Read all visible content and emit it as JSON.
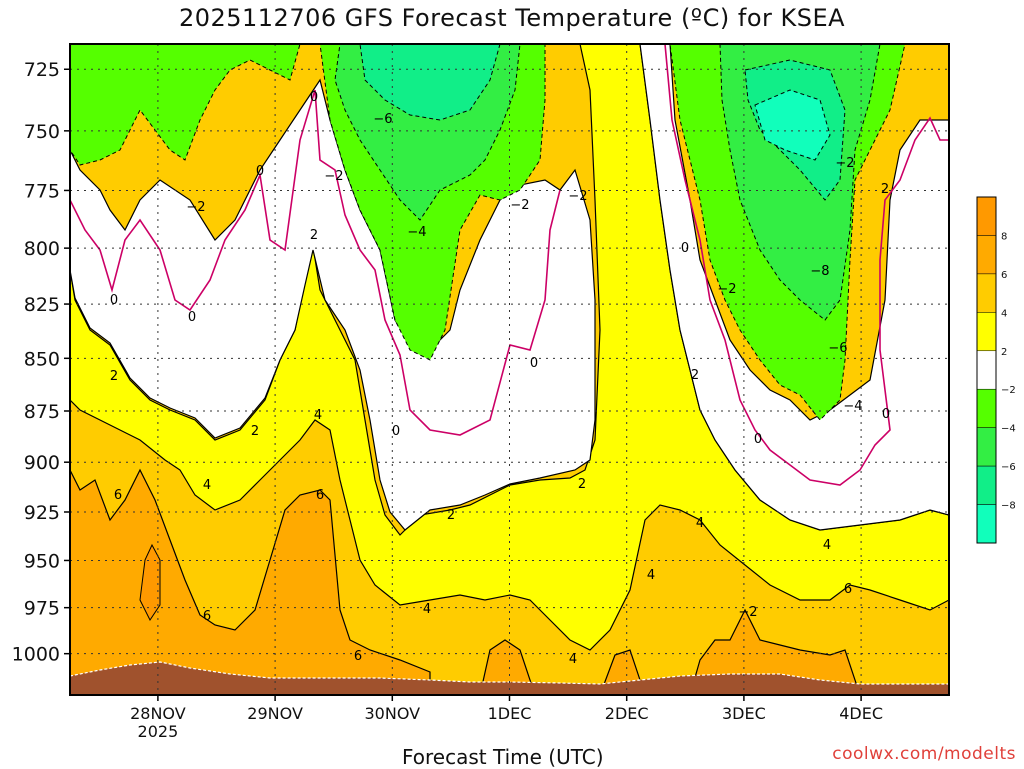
{
  "title": "2025112706 GFS Forecast Temperature (ºC) for KSEA",
  "credit": "coolwx.com/modelts",
  "chart_data": {
    "type": "heatmap",
    "title": "2025112706 GFS Forecast Temperature (ºC) for KSEA",
    "xlabel": "Forecast Time (UTC)",
    "ylabel": "",
    "x_ticks": [
      "28NOV\n2025",
      "29NOV",
      "30NOV",
      "1DEC",
      "2DEC",
      "3DEC",
      "4DEC"
    ],
    "x_tick_hours": [
      18,
      42,
      66,
      90,
      114,
      138,
      162
    ],
    "xlim_hours": [
      0,
      180
    ],
    "y_ticks": [
      725,
      750,
      775,
      800,
      825,
      850,
      875,
      900,
      925,
      950,
      975,
      1000
    ],
    "ylim": [
      1023,
      715
    ],
    "y_scale": "log-pressure",
    "grid": true,
    "colorbar": {
      "labels": [
        "8",
        "6",
        "4",
        "2",
        "−2",
        "−4",
        "−6",
        "−8"
      ],
      "bins": [
        {
          "min": 8,
          "max": 10,
          "color": "#ff9900"
        },
        {
          "min": 6,
          "max": 8,
          "color": "#ffaa00"
        },
        {
          "min": 4,
          "max": 6,
          "color": "#ffcc00"
        },
        {
          "min": 2,
          "max": 4,
          "color": "#ffff00"
        },
        {
          "min": -2,
          "max": 2,
          "color": "#ffffff"
        },
        {
          "min": -4,
          "max": -2,
          "color": "#55ff00"
        },
        {
          "min": -6,
          "max": -4,
          "color": "#33ee44"
        },
        {
          "min": -8,
          "max": -6,
          "color": "#11ee88"
        },
        {
          "min": -10,
          "max": -8,
          "color": "#11ffbb"
        }
      ]
    },
    "terrain_color": "#a0522d",
    "zero_isotherm_color": "#cc0066",
    "contour_label_values": [
      "0",
      "0",
      "0",
      "0",
      "0",
      "0",
      "0",
      "0",
      "0",
      "2",
      "2",
      "2",
      "2",
      "2",
      "2",
      "2",
      "4",
      "4",
      "4",
      "4",
      "4",
      "4",
      "4",
      "6",
      "6",
      "6",
      "6",
      "6",
      "−2",
      "−2",
      "−2",
      "−2",
      "−2",
      "−2",
      "−2",
      "−4",
      "−4",
      "−6",
      "−6",
      "−8"
    ]
  }
}
